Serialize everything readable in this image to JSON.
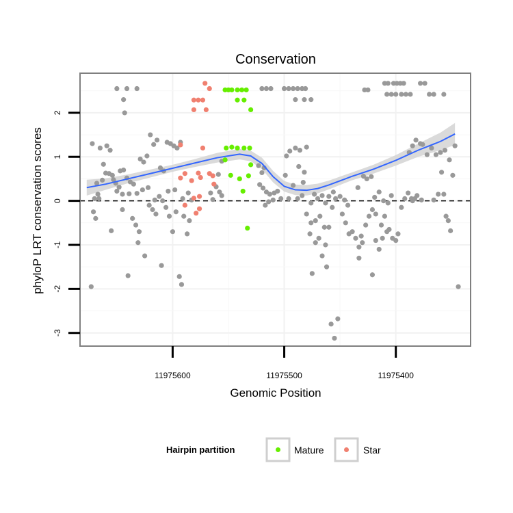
{
  "chart_data": {
    "type": "scatter",
    "title": "Conservation",
    "xlabel": "Genomic Position",
    "ylabel": "phyloP LRT conservation scores",
    "x_reversed": true,
    "xlim": [
      11975683,
      11975333
    ],
    "ylim": [
      -3.3,
      2.9
    ],
    "x_ticks": [
      11975600,
      11975500,
      11975400
    ],
    "x_tick_labels": [
      "11975600",
      "11975500",
      "11975400"
    ],
    "y_ticks": [
      -3,
      -2,
      -1,
      0,
      1,
      2
    ],
    "y_tick_labels": [
      "-3",
      "-2",
      "-1",
      "0",
      "1",
      "2"
    ],
    "hline": {
      "y": 0,
      "style": "dashed"
    },
    "grid": true,
    "legend": {
      "title": "Hairpin partition",
      "placement": "bottom",
      "entries": [
        {
          "label": "Mature",
          "color": "#66ee00"
        },
        {
          "label": "Star",
          "color": "#f08070"
        }
      ]
    },
    "colors": {
      "other": "#999999",
      "Mature": "#66ee00",
      "Star": "#f08070",
      "smooth": "#3366ff",
      "ribbon": "#d3d3d3"
    },
    "smooth": {
      "x": [
        11975677,
        11975660,
        11975640,
        11975620,
        11975600,
        11975580,
        11975560,
        11975540,
        11975530,
        11975520,
        11975510,
        11975500,
        11975490,
        11975480,
        11975470,
        11975460,
        11975440,
        11975420,
        11975400,
        11975380,
        11975360,
        11975347
      ],
      "y": [
        0.3,
        0.38,
        0.5,
        0.62,
        0.74,
        0.86,
        0.98,
        1.06,
        1.02,
        0.85,
        0.55,
        0.33,
        0.25,
        0.24,
        0.28,
        0.36,
        0.55,
        0.72,
        0.92,
        1.15,
        1.35,
        1.52
      ],
      "band": [
        0.18,
        0.13,
        0.1,
        0.09,
        0.08,
        0.09,
        0.11,
        0.12,
        0.12,
        0.13,
        0.13,
        0.12,
        0.12,
        0.12,
        0.11,
        0.1,
        0.09,
        0.1,
        0.12,
        0.15,
        0.2,
        0.25
      ]
    },
    "series": [
      {
        "name": "Mature",
        "points": [
          [
            11975553,
            2.52
          ],
          [
            11975550,
            2.52
          ],
          [
            11975547,
            2.52
          ],
          [
            11975542,
            2.52
          ],
          [
            11975538,
            2.52
          ],
          [
            11975534,
            2.52
          ],
          [
            11975542,
            2.29
          ],
          [
            11975536,
            2.29
          ],
          [
            11975530,
            2.07
          ],
          [
            11975552,
            1.2
          ],
          [
            11975547,
            1.22
          ],
          [
            11975542,
            1.2
          ],
          [
            11975536,
            1.2
          ],
          [
            11975531,
            1.2
          ],
          [
            11975553,
            0.93
          ],
          [
            11975530,
            0.82
          ],
          [
            11975548,
            0.58
          ],
          [
            11975540,
            0.5
          ],
          [
            11975532,
            0.57
          ],
          [
            11975537,
            0.22
          ],
          [
            11975533,
            -0.62
          ]
        ]
      },
      {
        "name": "Star",
        "points": [
          [
            11975571,
            2.67
          ],
          [
            11975567,
            2.55
          ],
          [
            11975581,
            2.29
          ],
          [
            11975577,
            2.29
          ],
          [
            11975573,
            2.29
          ],
          [
            11975581,
            2.07
          ],
          [
            11975570,
            2.07
          ],
          [
            11975593,
            1.27
          ],
          [
            11975573,
            1.2
          ],
          [
            11975589,
            0.62
          ],
          [
            11975577,
            0.63
          ],
          [
            11975567,
            0.62
          ],
          [
            11975575,
            0.53
          ],
          [
            11975564,
            0.57
          ],
          [
            11975593,
            0.52
          ],
          [
            11975583,
            0.46
          ],
          [
            11975581,
            0.06
          ],
          [
            11975563,
            0.38
          ],
          [
            11975576,
            0.1
          ],
          [
            11975589,
            -0.1
          ],
          [
            11975576,
            -0.18
          ],
          [
            11975579,
            -0.28
          ]
        ]
      },
      {
        "name": "Other",
        "points": [
          [
            11975672,
            1.3
          ],
          [
            11975669,
            -0.4
          ],
          [
            11975671,
            -0.25
          ],
          [
            11975667,
            0.15
          ],
          [
            11975670,
            0.05
          ],
          [
            11975673,
            -1.95
          ],
          [
            11975665,
            1.2
          ],
          [
            11975663,
            0.47
          ],
          [
            11975660,
            0.63
          ],
          [
            11975657,
            0.62
          ],
          [
            11975654,
            0.58
          ],
          [
            11975651,
            0.4
          ],
          [
            11975648,
            0.31
          ],
          [
            11975647,
            0.68
          ],
          [
            11975644,
            0.7
          ],
          [
            11975641,
            0.52
          ],
          [
            11975638,
            0.43
          ],
          [
            11975635,
            0.38
          ],
          [
            11975632,
            0.17
          ],
          [
            11975629,
            0.95
          ],
          [
            11975626,
            0.88
          ],
          [
            11975623,
            1.02
          ],
          [
            11975620,
            1.5
          ],
          [
            11975617,
            1.28
          ],
          [
            11975614,
            1.38
          ],
          [
            11975611,
            0.75
          ],
          [
            11975608,
            0.68
          ],
          [
            11975605,
            1.33
          ],
          [
            11975602,
            1.3
          ],
          [
            11975599,
            1.25
          ],
          [
            11975596,
            1.2
          ],
          [
            11975593,
            1.33
          ],
          [
            11975659,
            1.25
          ],
          [
            11975656,
            1.15
          ],
          [
            11975662,
            0.83
          ],
          [
            11975668,
            0.4
          ],
          [
            11975666,
            0.05
          ],
          [
            11975653,
            0.48
          ],
          [
            11975650,
            0.22
          ],
          [
            11975645,
            0.15
          ],
          [
            11975639,
            0.16
          ],
          [
            11975636,
            -0.4
          ],
          [
            11975633,
            -0.55
          ],
          [
            11975630,
            -0.7
          ],
          [
            11975625,
            -1.25
          ],
          [
            11975621,
            -0.1
          ],
          [
            11975618,
            -0.2
          ],
          [
            11975615,
            -0.3
          ],
          [
            11975612,
            0.1
          ],
          [
            11975609,
            0.0
          ],
          [
            11975606,
            -0.15
          ],
          [
            11975603,
            -0.35
          ],
          [
            11975600,
            -0.7
          ],
          [
            11975597,
            -0.25
          ],
          [
            11975594,
            -1.72
          ],
          [
            11975592,
            -1.9
          ],
          [
            11975590,
            -0.35
          ],
          [
            11975587,
            -0.75
          ],
          [
            11975585,
            -0.45
          ],
          [
            11975631,
            -0.95
          ],
          [
            11975640,
            -1.7
          ],
          [
            11975610,
            -1.47
          ],
          [
            11975650,
            2.55
          ],
          [
            11975641,
            2.55
          ],
          [
            11975632,
            2.55
          ],
          [
            11975644,
            2.3
          ],
          [
            11975643,
            2.0
          ],
          [
            11975655,
            -0.68
          ],
          [
            11975645,
            -0.2
          ],
          [
            11975627,
            0.25
          ],
          [
            11975622,
            0.3
          ],
          [
            11975616,
            0.02
          ],
          [
            11975604,
            0.22
          ],
          [
            11975598,
            0.25
          ],
          [
            11975591,
            0.05
          ],
          [
            11975586,
            0.18
          ],
          [
            11975583,
            0.02
          ],
          [
            11975566,
            0.18
          ],
          [
            11975564,
            0.03
          ],
          [
            11975561,
            0.32
          ],
          [
            11975558,
            0.2
          ],
          [
            11975556,
            0.12
          ],
          [
            11975559,
            0.6
          ],
          [
            11975556,
            0.9
          ],
          [
            11975523,
            0.8
          ],
          [
            11975520,
            0.64
          ],
          [
            11975518,
            0.75
          ],
          [
            11975522,
            0.37
          ],
          [
            11975519,
            0.29
          ],
          [
            11975516,
            0.2
          ],
          [
            11975513,
            0.15
          ],
          [
            11975510,
            0.02
          ],
          [
            11975517,
            -0.1
          ],
          [
            11975514,
            -0.02
          ],
          [
            11975520,
            2.55
          ],
          [
            11975516,
            2.55
          ],
          [
            11975512,
            2.55
          ],
          [
            11975500,
            2.55
          ],
          [
            11975496,
            2.55
          ],
          [
            11975492,
            2.55
          ],
          [
            11975488,
            2.55
          ],
          [
            11975484,
            2.55
          ],
          [
            11975481,
            2.55
          ],
          [
            11975490,
            2.3
          ],
          [
            11975482,
            2.3
          ],
          [
            11975476,
            2.3
          ],
          [
            11975498,
            1.02
          ],
          [
            11975495,
            1.13
          ],
          [
            11975490,
            1.2
          ],
          [
            11975486,
            1.15
          ],
          [
            11975480,
            1.22
          ],
          [
            11975499,
            0.58
          ],
          [
            11975487,
            0.78
          ],
          [
            11975482,
            0.65
          ],
          [
            11975492,
            0.35
          ],
          [
            11975483,
            0.42
          ],
          [
            11975496,
            0.05
          ],
          [
            11975488,
            0.05
          ],
          [
            11975484,
            0.12
          ],
          [
            11975509,
            0.18
          ],
          [
            11975506,
            0.22
          ],
          [
            11975503,
            0.05
          ],
          [
            11975473,
            0.15
          ],
          [
            11975470,
            0.05
          ],
          [
            11975466,
            0.12
          ],
          [
            11975463,
            -0.05
          ],
          [
            11975460,
            0.1
          ],
          [
            11975476,
            -0.05
          ],
          [
            11975480,
            -0.3
          ],
          [
            11975476,
            -0.5
          ],
          [
            11975472,
            -0.45
          ],
          [
            11975468,
            -0.35
          ],
          [
            11975464,
            -0.6
          ],
          [
            11975477,
            -0.75
          ],
          [
            11975472,
            -0.95
          ],
          [
            11975469,
            -0.85
          ],
          [
            11975466,
            -1.25
          ],
          [
            11975475,
            -1.65
          ],
          [
            11975463,
            -1.0
          ],
          [
            11975460,
            -0.6
          ],
          [
            11975457,
            -0.15
          ],
          [
            11975454,
            0.05
          ],
          [
            11975450,
            0.1
          ],
          [
            11975446,
            0.02
          ],
          [
            11975443,
            -0.1
          ],
          [
            11975456,
            0.2
          ],
          [
            11975462,
            -1.5
          ],
          [
            11975458,
            -2.8
          ],
          [
            11975455,
            -3.12
          ],
          [
            11975452,
            -2.68
          ],
          [
            11975448,
            -0.3
          ],
          [
            11975445,
            -0.5
          ],
          [
            11975442,
            -0.75
          ],
          [
            11975439,
            -0.7
          ],
          [
            11975436,
            -0.85
          ],
          [
            11975433,
            -1.05
          ],
          [
            11975431,
            -0.8
          ],
          [
            11975433,
            -1.3
          ],
          [
            11975430,
            -0.95
          ],
          [
            11975427,
            -0.55
          ],
          [
            11975424,
            -0.35
          ],
          [
            11975421,
            -0.2
          ],
          [
            11975418,
            -0.3
          ],
          [
            11975413,
            -0.55
          ],
          [
            11975410,
            -0.35
          ],
          [
            11975421,
            -1.68
          ],
          [
            11975418,
            -0.9
          ],
          [
            11975415,
            -1.1
          ],
          [
            11975412,
            -0.85
          ],
          [
            11975408,
            -0.7
          ],
          [
            11975406,
            -0.65
          ],
          [
            11975403,
            -0.85
          ],
          [
            11975400,
            -0.9
          ],
          [
            11975398,
            -0.75
          ],
          [
            11975395,
            -0.15
          ],
          [
            11975392,
            0.05
          ],
          [
            11975389,
            0.18
          ],
          [
            11975386,
            0.05
          ],
          [
            11975434,
            0.3
          ],
          [
            11975429,
            0.56
          ],
          [
            11975426,
            0.5
          ],
          [
            11975422,
            0.55
          ],
          [
            11975419,
            0.08
          ],
          [
            11975415,
            0.2
          ],
          [
            11975411,
            0.0
          ],
          [
            11975407,
            -0.05
          ],
          [
            11975404,
            0.12
          ],
          [
            11975428,
            2.52
          ],
          [
            11975425,
            2.52
          ],
          [
            11975410,
            2.67
          ],
          [
            11975407,
            2.67
          ],
          [
            11975402,
            2.67
          ],
          [
            11975399,
            2.67
          ],
          [
            11975396,
            2.67
          ],
          [
            11975393,
            2.67
          ],
          [
            11975408,
            2.42
          ],
          [
            11975404,
            2.42
          ],
          [
            11975400,
            2.42
          ],
          [
            11975395,
            2.42
          ],
          [
            11975391,
            2.42
          ],
          [
            11975387,
            2.42
          ],
          [
            11975378,
            2.67
          ],
          [
            11975374,
            2.67
          ],
          [
            11975370,
            2.42
          ],
          [
            11975366,
            2.42
          ],
          [
            11975357,
            2.42
          ],
          [
            11975388,
            1.1
          ],
          [
            11975385,
            1.25
          ],
          [
            11975382,
            1.38
          ],
          [
            11975378,
            1.3
          ],
          [
            11975376,
            1.28
          ],
          [
            11975372,
            1.05
          ],
          [
            11975368,
            1.2
          ],
          [
            11975364,
            1.05
          ],
          [
            11975360,
            1.1
          ],
          [
            11975356,
            1.15
          ],
          [
            11975352,
            0.93
          ],
          [
            11975349,
            0.58
          ],
          [
            11975359,
            0.65
          ],
          [
            11975362,
            0.15
          ],
          [
            11975357,
            0.15
          ],
          [
            11975366,
            0.02
          ],
          [
            11975355,
            -0.35
          ],
          [
            11975353,
            -0.45
          ],
          [
            11975351,
            -0.68
          ],
          [
            11975347,
            1.25
          ],
          [
            11975344,
            -1.95
          ],
          [
            11975385,
            0.0
          ],
          [
            11975381,
            0.12
          ],
          [
            11975377,
            0.02
          ],
          [
            11975383,
            0.05
          ]
        ]
      }
    ]
  }
}
